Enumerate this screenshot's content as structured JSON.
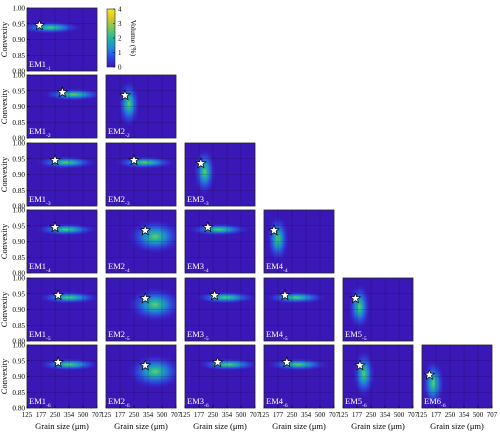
{
  "chart_data": {
    "type": "heatmap",
    "description_of_grid": "lower-triangular grid of end-member density maps; row r shows the r-member model, column c the c-th end member",
    "y_axis": {
      "label": "Convexity",
      "ylim": [
        0.8,
        1.0
      ],
      "ticks": [
        "1.00",
        "0.95",
        "0.90",
        "0.85",
        "0.80"
      ]
    },
    "x_axis": {
      "label": "Grain size (μm)",
      "scale": "log",
      "ticks": [
        "125",
        "177",
        "250",
        "354",
        "500",
        "707"
      ]
    },
    "colorbar": {
      "label": "Volume (%)",
      "min": 0,
      "max": 4,
      "ticks": [
        "4",
        "3",
        "2",
        "1",
        "0"
      ],
      "colors": [
        "#3a18b8",
        "#2f46e6",
        "#1f8fd6",
        "#22b79d",
        "#73c85a",
        "#d6c52d",
        "#f9e61f"
      ]
    },
    "background_color": "#3a18b8",
    "panels": [
      {
        "row": 1,
        "col": 1,
        "em": "EM1",
        "sub": "-1",
        "peak_size": 170,
        "peak_convexity": 0.945,
        "spread": "wide"
      },
      {
        "row": 2,
        "col": 1,
        "em": "EM1",
        "sub": "-2",
        "peak_size": 300,
        "peak_convexity": 0.945,
        "spread": "wide"
      },
      {
        "row": 2,
        "col": 2,
        "em": "EM2",
        "sub": "-2",
        "peak_size": 200,
        "peak_convexity": 0.935,
        "spread": "tall"
      },
      {
        "row": 3,
        "col": 1,
        "em": "EM1",
        "sub": "-3",
        "peak_size": 250,
        "peak_convexity": 0.945,
        "spread": "wide"
      },
      {
        "row": 3,
        "col": 2,
        "em": "EM2",
        "sub": "-3",
        "peak_size": 250,
        "peak_convexity": 0.945,
        "spread": "wide"
      },
      {
        "row": 3,
        "col": 3,
        "em": "EM3",
        "sub": "-3",
        "peak_size": 185,
        "peak_convexity": 0.935,
        "spread": "tall"
      },
      {
        "row": 4,
        "col": 1,
        "em": "EM1",
        "sub": "-4",
        "peak_size": 250,
        "peak_convexity": 0.945,
        "spread": "wide"
      },
      {
        "row": 4,
        "col": 2,
        "em": "EM2",
        "sub": "-4",
        "peak_size": 330,
        "peak_convexity": 0.935,
        "spread": "diffuse"
      },
      {
        "row": 4,
        "col": 3,
        "em": "EM3",
        "sub": "-4",
        "peak_size": 220,
        "peak_convexity": 0.945,
        "spread": "wide"
      },
      {
        "row": 4,
        "col": 4,
        "em": "EM4",
        "sub": "-4",
        "peak_size": 160,
        "peak_convexity": 0.935,
        "spread": "tall"
      },
      {
        "row": 5,
        "col": 1,
        "em": "EM1",
        "sub": "-5",
        "peak_size": 270,
        "peak_convexity": 0.945,
        "spread": "wide"
      },
      {
        "row": 5,
        "col": 2,
        "em": "EM2",
        "sub": "-5",
        "peak_size": 330,
        "peak_convexity": 0.935,
        "spread": "diffuse"
      },
      {
        "row": 5,
        "col": 3,
        "em": "EM3",
        "sub": "-5",
        "peak_size": 260,
        "peak_convexity": 0.945,
        "spread": "wide"
      },
      {
        "row": 5,
        "col": 4,
        "em": "EM4",
        "sub": "-5",
        "peak_size": 210,
        "peak_convexity": 0.945,
        "spread": "wide"
      },
      {
        "row": 5,
        "col": 5,
        "em": "EM5",
        "sub": "-5",
        "peak_size": 170,
        "peak_convexity": 0.935,
        "spread": "tall"
      },
      {
        "row": 6,
        "col": 1,
        "em": "EM1",
        "sub": "-6",
        "peak_size": 270,
        "peak_convexity": 0.945,
        "spread": "wide"
      },
      {
        "row": 6,
        "col": 2,
        "em": "EM2",
        "sub": "-6",
        "peak_size": 330,
        "peak_convexity": 0.935,
        "spread": "diffuse"
      },
      {
        "row": 6,
        "col": 3,
        "em": "EM3",
        "sub": "-6",
        "peak_size": 280,
        "peak_convexity": 0.945,
        "spread": "wide"
      },
      {
        "row": 6,
        "col": 4,
        "em": "EM4",
        "sub": "-6",
        "peak_size": 220,
        "peak_convexity": 0.945,
        "spread": "wide"
      },
      {
        "row": 6,
        "col": 5,
        "em": "EM5",
        "sub": "-6",
        "peak_size": 190,
        "peak_convexity": 0.935,
        "spread": "tall"
      },
      {
        "row": 6,
        "col": 6,
        "em": "EM6",
        "sub": "-6",
        "peak_size": 150,
        "peak_convexity": 0.905,
        "spread": "tall"
      }
    ]
  }
}
